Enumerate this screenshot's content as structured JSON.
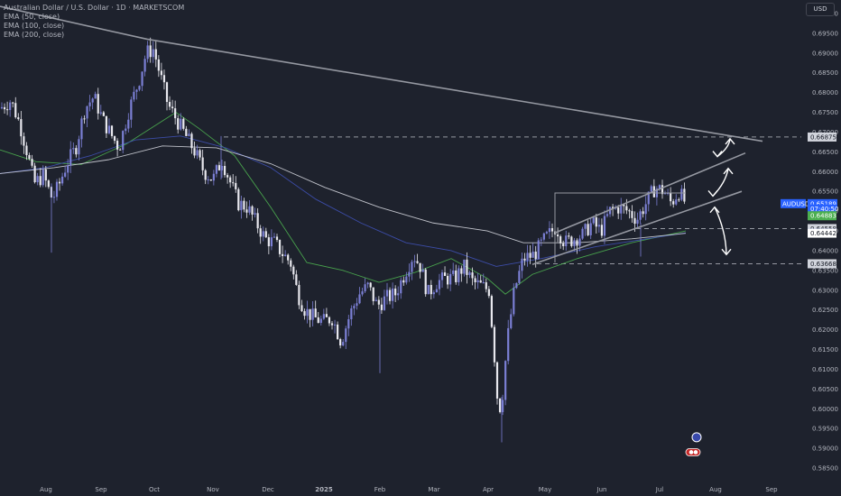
{
  "header": {
    "title": "Australian Dollar / U.S. Dollar · 1D · MARKETSCOM",
    "indicators": [
      "EMA (50, close)",
      "EMA (100, close)",
      "EMA (200, close)"
    ],
    "currency": "USD"
  },
  "chart_data": {
    "type": "candlestick",
    "symbol": "AUDUSD",
    "ylim": [
      0.585,
      0.7025
    ],
    "y_ticks": [
      "0.70000",
      "0.69500",
      "0.69000",
      "0.68500",
      "0.68000",
      "0.67500",
      "0.67000",
      "0.66500",
      "0.66000",
      "0.65500",
      "0.65000",
      "0.64500",
      "0.64000",
      "0.63500",
      "0.63000",
      "0.62500",
      "0.62000",
      "0.61500",
      "0.61000",
      "0.60500",
      "0.60000",
      "0.59500",
      "0.59000",
      "0.58500"
    ],
    "x_ticks": [
      "Aug",
      "Sep",
      "Oct",
      "Nov",
      "Dec",
      "2025",
      "Feb",
      "Mar",
      "Apr",
      "May",
      "Jun",
      "Jul",
      "Aug",
      "Sep"
    ],
    "price_labels": [
      {
        "text": "0.66875",
        "value": 0.66875,
        "role": "level"
      },
      {
        "text": "0.65189",
        "value": 0.65189,
        "role": "last-price"
      },
      {
        "text": "07:40:50",
        "value": 0.65055,
        "role": "countdown"
      },
      {
        "text": "0.64883",
        "value": 0.64883,
        "role": "ema-50"
      },
      {
        "text": "0.64558",
        "value": 0.64558,
        "role": "level"
      },
      {
        "text": "0.64445",
        "value": 0.64445,
        "role": "ema-100"
      },
      {
        "text": "0.64442",
        "value": 0.64442,
        "role": "ema-200"
      },
      {
        "text": "0.63668",
        "value": 0.63668,
        "role": "level"
      }
    ],
    "horizontal_levels": [
      0.66875,
      0.64558,
      0.63668
    ],
    "trendlines": [
      {
        "points": [
          [
            0,
            0.7018
          ],
          [
            163,
            0.6935
          ],
          [
            845,
            0.6677
          ]
        ]
      },
      {
        "points": [
          [
            615,
            0.6445
          ],
          [
            826,
            0.6647
          ]
        ]
      },
      {
        "points": [
          [
            590,
            0.6365
          ],
          [
            822,
            0.655
          ]
        ]
      }
    ],
    "channel_box": {
      "x": [
        615,
        760
      ],
      "top": 0.6546,
      "bottom": 0.637
    },
    "arrows": [
      {
        "x": [
          795,
          809
        ],
        "y": [
          0.6638,
          0.6683
        ],
        "direction": "up"
      },
      {
        "x": [
          790,
          807
        ],
        "y": [
          0.6538,
          0.6608
        ],
        "direction": "up"
      },
      {
        "x": [
          792,
          805
        ],
        "y": [
          0.651,
          0.639
        ],
        "direction": "down"
      }
    ],
    "events": [
      {
        "icon": "earnings",
        "x": 772,
        "value": 0.5928
      },
      {
        "icon": "flag",
        "x": 768,
        "value": 0.589
      }
    ],
    "ema_keys": [
      {
        "period": 50,
        "color": "#4caf50",
        "points": [
          [
            0,
            0.6655
          ],
          [
            40,
            0.6625
          ],
          [
            90,
            0.6618
          ],
          [
            140,
            0.667
          ],
          [
            195,
            0.675
          ],
          [
            220,
            0.671
          ],
          [
            260,
            0.664
          ],
          [
            300,
            0.651
          ],
          [
            340,
            0.637
          ],
          [
            380,
            0.635
          ],
          [
            420,
            0.632
          ],
          [
            460,
            0.6345
          ],
          [
            500,
            0.638
          ],
          [
            540,
            0.633
          ],
          [
            560,
            0.629
          ],
          [
            590,
            0.634
          ],
          [
            640,
            0.638
          ],
          [
            700,
            0.642
          ],
          [
            760,
            0.645
          ]
        ]
      },
      {
        "period": 100,
        "color": "#3f51b5",
        "points": [
          [
            0,
            0.6595
          ],
          [
            50,
            0.661
          ],
          [
            100,
            0.664
          ],
          [
            150,
            0.668
          ],
          [
            200,
            0.669
          ],
          [
            250,
            0.666
          ],
          [
            300,
            0.661
          ],
          [
            350,
            0.653
          ],
          [
            400,
            0.647
          ],
          [
            450,
            0.642
          ],
          [
            500,
            0.64
          ],
          [
            550,
            0.636
          ],
          [
            600,
            0.638
          ],
          [
            660,
            0.641
          ],
          [
            760,
            0.6445
          ]
        ]
      },
      {
        "period": 200,
        "color": "#d1d4dc",
        "points": [
          [
            0,
            0.6595
          ],
          [
            60,
            0.661
          ],
          [
            120,
            0.663
          ],
          [
            180,
            0.6665
          ],
          [
            240,
            0.666
          ],
          [
            300,
            0.662
          ],
          [
            360,
            0.656
          ],
          [
            420,
            0.651
          ],
          [
            480,
            0.647
          ],
          [
            540,
            0.645
          ],
          [
            580,
            0.642
          ],
          [
            640,
            0.642
          ],
          [
            700,
            0.643
          ],
          [
            760,
            0.6444
          ]
        ]
      }
    ],
    "price_path": [
      [
        0,
        0.676
      ],
      [
        12,
        0.678
      ],
      [
        22,
        0.672
      ],
      [
        30,
        0.665
      ],
      [
        38,
        0.657
      ],
      [
        48,
        0.659
      ],
      [
        58,
        0.653
      ],
      [
        66,
        0.657
      ],
      [
        74,
        0.662
      ],
      [
        84,
        0.666
      ],
      [
        94,
        0.676
      ],
      [
        104,
        0.679
      ],
      [
        114,
        0.673
      ],
      [
        124,
        0.669
      ],
      [
        132,
        0.666
      ],
      [
        142,
        0.675
      ],
      [
        154,
        0.683
      ],
      [
        162,
        0.69
      ],
      [
        170,
        0.691
      ],
      [
        178,
        0.684
      ],
      [
        186,
        0.677
      ],
      [
        196,
        0.673
      ],
      [
        206,
        0.669
      ],
      [
        216,
        0.665
      ],
      [
        226,
        0.66
      ],
      [
        236,
        0.658
      ],
      [
        246,
        0.663
      ],
      [
        254,
        0.658
      ],
      [
        264,
        0.652
      ],
      [
        274,
        0.651
      ],
      [
        284,
        0.647
      ],
      [
        294,
        0.643
      ],
      [
        304,
        0.642
      ],
      [
        314,
        0.639
      ],
      [
        322,
        0.637
      ],
      [
        330,
        0.629
      ],
      [
        338,
        0.625
      ],
      [
        348,
        0.623
      ],
      [
        358,
        0.622
      ],
      [
        368,
        0.623
      ],
      [
        378,
        0.617
      ],
      [
        388,
        0.624
      ],
      [
        398,
        0.629
      ],
      [
        408,
        0.631
      ],
      [
        418,
        0.626
      ],
      [
        428,
        0.628
      ],
      [
        438,
        0.629
      ],
      [
        448,
        0.634
      ],
      [
        458,
        0.639
      ],
      [
        466,
        0.636
      ],
      [
        474,
        0.629
      ],
      [
        484,
        0.632
      ],
      [
        494,
        0.633
      ],
      [
        504,
        0.633
      ],
      [
        514,
        0.636
      ],
      [
        524,
        0.632
      ],
      [
        534,
        0.631
      ],
      [
        542,
        0.63
      ],
      [
        548,
        0.613
      ],
      [
        552,
        0.6
      ],
      [
        556,
        0.601
      ],
      [
        562,
        0.617
      ],
      [
        570,
        0.63
      ],
      [
        580,
        0.638
      ],
      [
        592,
        0.639
      ],
      [
        604,
        0.643
      ],
      [
        616,
        0.646
      ],
      [
        626,
        0.642
      ],
      [
        636,
        0.643
      ],
      [
        646,
        0.644
      ],
      [
        656,
        0.647
      ],
      [
        666,
        0.645
      ],
      [
        676,
        0.65
      ],
      [
        686,
        0.651
      ],
      [
        696,
        0.65
      ],
      [
        706,
        0.648
      ],
      [
        716,
        0.652
      ],
      [
        726,
        0.656
      ],
      [
        736,
        0.655
      ],
      [
        744,
        0.652
      ],
      [
        752,
        0.655
      ],
      [
        760,
        0.6519
      ]
    ],
    "series_colors": {
      "up": "#7b7fd4",
      "down": "#e8e8ee"
    }
  }
}
